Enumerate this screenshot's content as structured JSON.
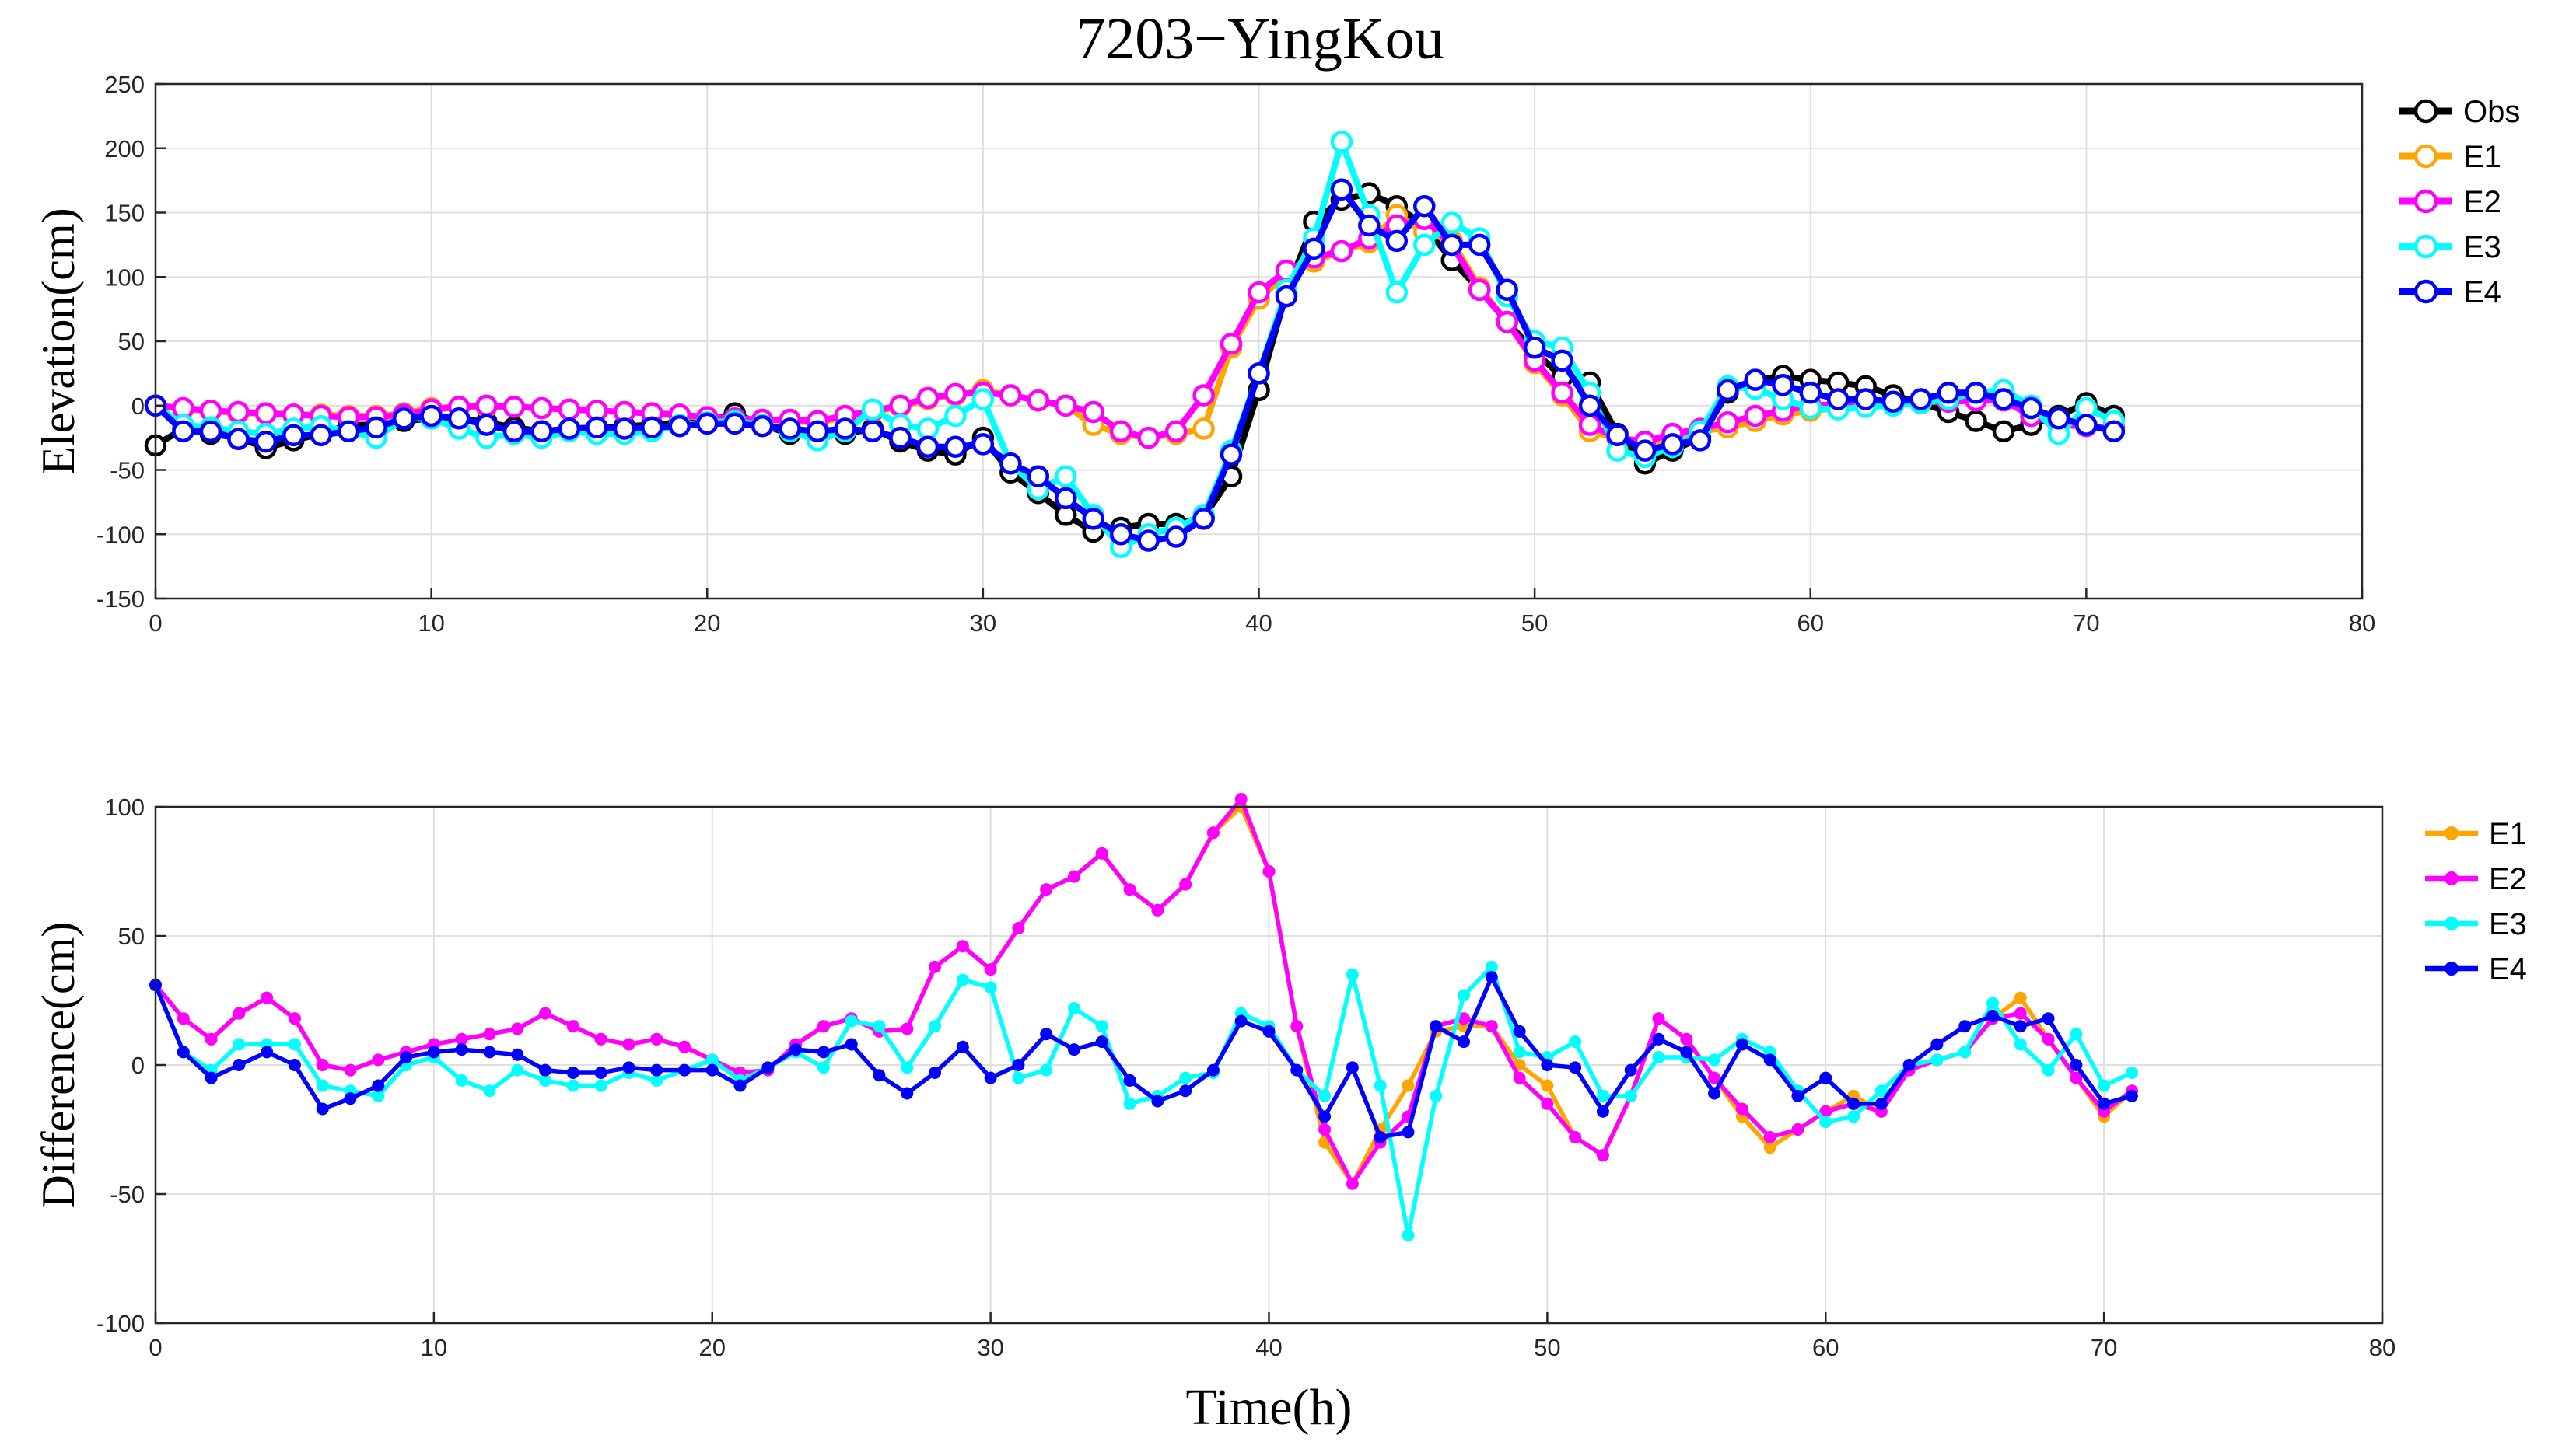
{
  "figure_title": "7203−YingKou",
  "colors": {
    "Obs": "#000000",
    "E1": "#FFA500",
    "E2": "#FF00FF",
    "E3": "#00FFFF",
    "E4": "#0000FF"
  },
  "chart_data": [
    {
      "type": "line",
      "title": "7203−YingKou",
      "xlabel": "",
      "ylabel": "Elevation(cm)",
      "xlim": [
        0,
        80
      ],
      "ylim": [
        -150,
        250
      ],
      "xticks": [
        0,
        10,
        20,
        30,
        40,
        50,
        60,
        70,
        80
      ],
      "yticks": [
        -150,
        -100,
        -50,
        0,
        50,
        100,
        150,
        200,
        250
      ],
      "grid": true,
      "legend_position": "outside-right-top",
      "x_step": 1,
      "series": [
        {
          "name": "Obs",
          "values": [
            -31,
            -18,
            -22,
            -25,
            -33,
            -27,
            -22,
            -15,
            -15,
            -12,
            -10,
            -10,
            -13,
            -17,
            -20,
            -18,
            -17,
            -16,
            -15,
            -13,
            -12,
            -6,
            -15,
            -22,
            -20,
            -22,
            -18,
            -28,
            -35,
            -38,
            -25,
            -52,
            -68,
            -85,
            -98,
            -95,
            -92,
            -92,
            -87,
            -55,
            12,
            88,
            143,
            160,
            165,
            155,
            140,
            113,
            90,
            65,
            42,
            22,
            18,
            -22,
            -45,
            -35,
            -25,
            10,
            20,
            23,
            20,
            18,
            15,
            8,
            2,
            -5,
            -12,
            -20,
            -15,
            -8,
            2,
            -8
          ]
        },
        {
          "name": "E1",
          "values": [
            0,
            -3,
            -4,
            -6,
            -6,
            -7,
            -7,
            -8,
            -8,
            -6,
            -2,
            -1,
            -1,
            -1,
            -2,
            -3,
            -4,
            -5,
            -6,
            -8,
            -9,
            -10,
            -11,
            -12,
            -13,
            -9,
            -5,
            -1,
            5,
            8,
            12,
            8,
            4,
            0,
            -15,
            -22,
            -25,
            -22,
            -18,
            45,
            83,
            102,
            112,
            120,
            127,
            148,
            135,
            128,
            92,
            65,
            33,
            8,
            -20,
            -25,
            -30,
            -27,
            -20,
            -17,
            -12,
            -7,
            -4,
            -2,
            0,
            2,
            3,
            3,
            4,
            5,
            -2,
            -10,
            -15,
            -18
          ]
        },
        {
          "name": "E2",
          "values": [
            0,
            -2,
            -4,
            -5,
            -6,
            -7,
            -8,
            -9,
            -9,
            -7,
            -3,
            -1,
            0,
            -1,
            -2,
            -3,
            -4,
            -5,
            -6,
            -7,
            -9,
            -10,
            -11,
            -11,
            -12,
            -8,
            -4,
            0,
            6,
            9,
            10,
            8,
            4,
            0,
            -5,
            -20,
            -25,
            -20,
            8,
            48,
            88,
            105,
            115,
            120,
            130,
            140,
            145,
            125,
            90,
            65,
            35,
            10,
            -15,
            -25,
            -28,
            -22,
            -18,
            -13,
            -8,
            -4,
            0,
            1,
            2,
            2,
            3,
            3,
            4,
            4,
            -8,
            -15,
            -16,
            -17
          ]
        },
        {
          "name": "E3",
          "values": [
            0,
            -15,
            -17,
            -20,
            -22,
            -18,
            -16,
            -20,
            -25,
            -10,
            -10,
            -18,
            -25,
            -22,
            -25,
            -20,
            -22,
            -22,
            -20,
            -15,
            -13,
            -12,
            -15,
            -20,
            -27,
            -20,
            -3,
            -15,
            -18,
            -8,
            5,
            -45,
            -65,
            -55,
            -85,
            -110,
            -100,
            -95,
            -85,
            -35,
            25,
            90,
            130,
            205,
            148,
            88,
            125,
            142,
            130,
            85,
            50,
            45,
            10,
            -35,
            -40,
            -32,
            -20,
            15,
            13,
            5,
            -2,
            -3,
            -1,
            0,
            2,
            5,
            10,
            12,
            0,
            -22,
            -2,
            -12
          ]
        },
        {
          "name": "E4",
          "values": [
            0,
            -20,
            -20,
            -26,
            -28,
            -23,
            -23,
            -20,
            -17,
            -10,
            -8,
            -10,
            -15,
            -20,
            -20,
            -18,
            -17,
            -18,
            -17,
            -16,
            -14,
            -14,
            -16,
            -18,
            -20,
            -18,
            -20,
            -25,
            -32,
            -32,
            -30,
            -45,
            -55,
            -72,
            -88,
            -100,
            -105,
            -102,
            -88,
            -38,
            25,
            85,
            122,
            168,
            140,
            128,
            155,
            125,
            125,
            90,
            45,
            35,
            0,
            -23,
            -35,
            -30,
            -27,
            12,
            20,
            16,
            10,
            5,
            5,
            3,
            5,
            10,
            10,
            5,
            -2,
            -10,
            -15,
            -20
          ]
        }
      ]
    },
    {
      "type": "line",
      "title": "",
      "xlabel": "Time(h)",
      "ylabel": "Difference(cm)",
      "xlim": [
        0,
        80
      ],
      "ylim": [
        -100,
        100
      ],
      "xticks": [
        0,
        10,
        20,
        30,
        40,
        50,
        60,
        70,
        80
      ],
      "yticks": [
        -100,
        -50,
        0,
        50,
        100
      ],
      "grid": true,
      "legend_position": "outside-right-top",
      "x_step": 1,
      "series": [
        {
          "name": "E1",
          "values": [
            31,
            18,
            10,
            20,
            26,
            18,
            0,
            -2,
            2,
            5,
            8,
            10,
            12,
            14,
            20,
            15,
            10,
            8,
            10,
            7,
            2,
            -3,
            -2,
            8,
            15,
            18,
            13,
            14,
            38,
            46,
            37,
            53,
            68,
            73,
            82,
            68,
            60,
            70,
            90,
            100,
            75,
            15,
            -30,
            -46,
            -25,
            -8,
            13,
            15,
            15,
            0,
            -8,
            -28,
            -35,
            -12,
            18,
            10,
            -5,
            -20,
            -32,
            -25,
            -18,
            -12,
            -18,
            -2,
            2,
            5,
            18,
            26,
            10,
            -5,
            -20,
            -10
          ]
        },
        {
          "name": "E2",
          "values": [
            31,
            18,
            10,
            20,
            26,
            18,
            0,
            -2,
            2,
            5,
            8,
            10,
            12,
            14,
            20,
            15,
            10,
            8,
            10,
            7,
            2,
            -3,
            -2,
            8,
            15,
            18,
            13,
            14,
            38,
            46,
            37,
            53,
            68,
            73,
            82,
            68,
            60,
            70,
            90,
            103,
            75,
            15,
            -25,
            -46,
            -30,
            -20,
            15,
            18,
            15,
            -5,
            -15,
            -28,
            -35,
            -12,
            18,
            10,
            -5,
            -17,
            -28,
            -25,
            -18,
            -15,
            -18,
            -2,
            2,
            5,
            18,
            20,
            10,
            -5,
            -18,
            -10
          ]
        },
        {
          "name": "E3",
          "values": [
            31,
            5,
            -2,
            8,
            8,
            8,
            -8,
            -10,
            -12,
            0,
            3,
            -6,
            -10,
            -2,
            -6,
            -8,
            -8,
            -3,
            -6,
            -2,
            2,
            -6,
            -1,
            5,
            -1,
            17,
            15,
            -1,
            15,
            33,
            30,
            -5,
            -2,
            22,
            15,
            -15,
            -12,
            -5,
            -3,
            20,
            15,
            -2,
            -12,
            35,
            -8,
            -66,
            -12,
            27,
            38,
            5,
            3,
            9,
            -12,
            -12,
            3,
            3,
            2,
            10,
            5,
            -10,
            -22,
            -20,
            -10,
            0,
            2,
            5,
            24,
            8,
            -2,
            12,
            -8,
            -3
          ]
        },
        {
          "name": "E4",
          "values": [
            31,
            5,
            -5,
            0,
            5,
            0,
            -17,
            -13,
            -8,
            3,
            5,
            6,
            5,
            4,
            -2,
            -3,
            -3,
            -1,
            -2,
            -2,
            -2,
            -8,
            -1,
            6,
            5,
            8,
            -4,
            -11,
            -3,
            7,
            -5,
            0,
            12,
            6,
            9,
            -6,
            -14,
            -10,
            -2,
            17,
            13,
            -2,
            -20,
            -1,
            -28,
            -26,
            15,
            9,
            34,
            13,
            0,
            -1,
            -18,
            -2,
            10,
            5,
            -11,
            8,
            2,
            -12,
            -5,
            -15,
            -15,
            0,
            8,
            15,
            19,
            15,
            18,
            0,
            -15,
            -12
          ]
        }
      ]
    }
  ]
}
